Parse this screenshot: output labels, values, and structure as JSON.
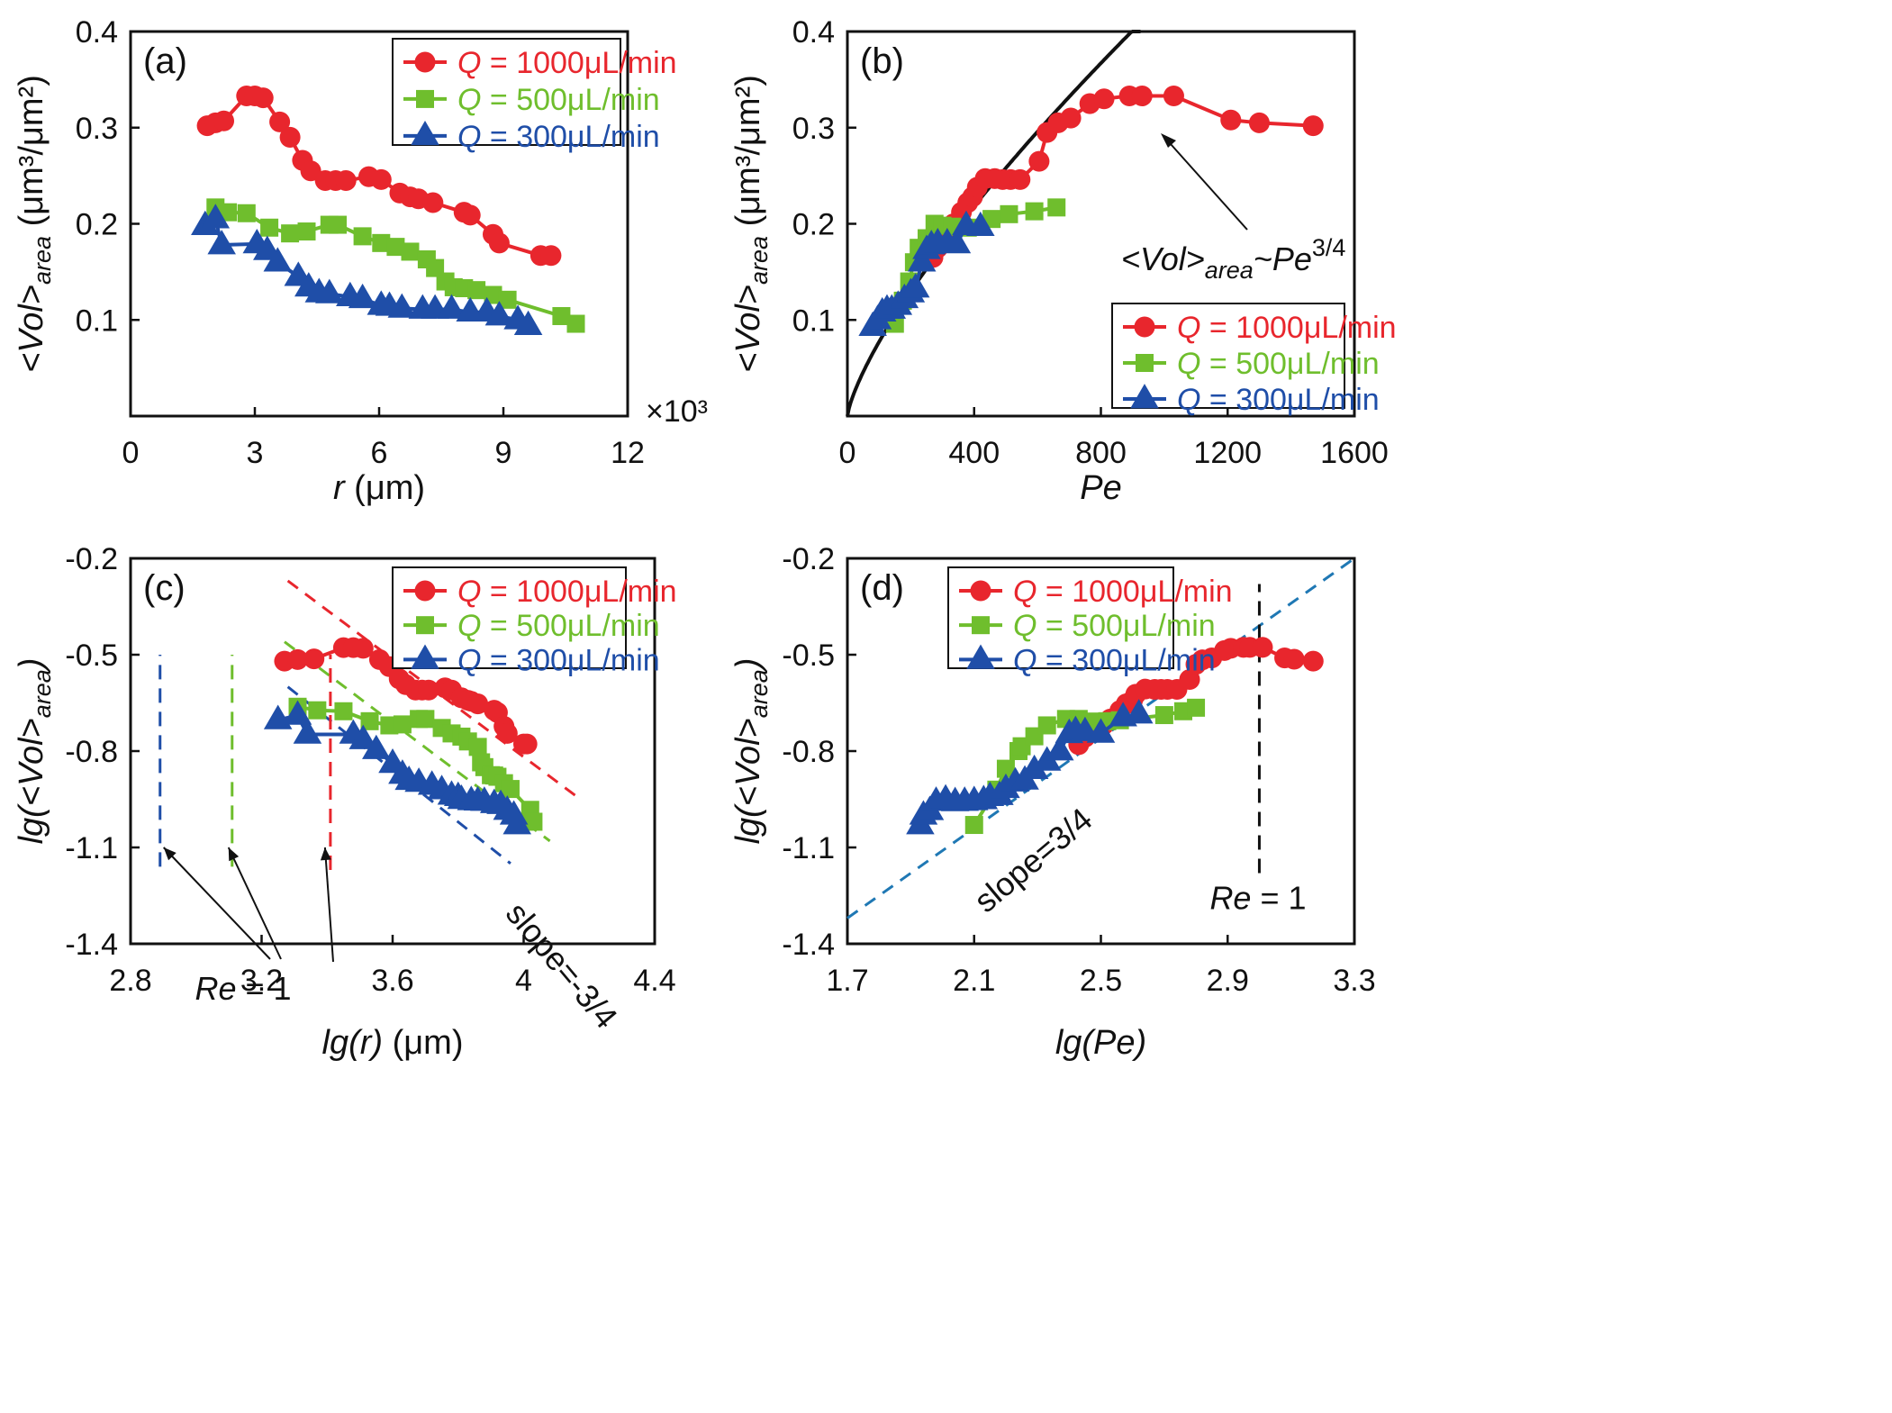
{
  "colors": {
    "red": "#e8262d",
    "green": "#6fbe2d",
    "blue": "#1f4ea8",
    "black": "#111111",
    "fitblue": "#1f78b4"
  },
  "legend_labels": {
    "q": "Q",
    "s1000": " = 1000μL/min",
    "s500": " = 500μL/min",
    "s300": " = 300μL/min"
  },
  "chart_data": [
    {
      "panel": "(a)",
      "type": "line",
      "xlabel_var": "r",
      "xlabel_unit": " (μm)",
      "ylabel_main": "<Vol>",
      "ylabel_sub": "area",
      "ylabel_unit": " (μm³/μm²)",
      "x_multiplier": "×10³",
      "xlim": [
        0,
        12
      ],
      "ylim": [
        0,
        0.4
      ],
      "xticks": [
        "0",
        "3",
        "6",
        "9",
        "12"
      ],
      "yticks": [
        "0.1",
        "0.2",
        "0.3",
        "0.4"
      ],
      "legend_position": "top-right",
      "series": [
        {
          "name": "Q = 1000μL/min",
          "color": "red",
          "marker": "circle",
          "x": [
            1.85,
            2.05,
            2.25,
            2.8,
            3.0,
            3.2,
            3.6,
            3.85,
            4.15,
            4.35,
            4.7,
            4.95,
            5.2,
            5.75,
            6.05,
            6.5,
            6.75,
            6.95,
            7.3,
            8.05,
            8.2,
            8.75,
            8.9,
            9.9,
            10.15
          ],
          "y": [
            0.302,
            0.305,
            0.307,
            0.333,
            0.333,
            0.331,
            0.306,
            0.29,
            0.266,
            0.255,
            0.245,
            0.245,
            0.245,
            0.249,
            0.246,
            0.232,
            0.228,
            0.226,
            0.222,
            0.212,
            0.209,
            0.189,
            0.18,
            0.167,
            0.167
          ]
        },
        {
          "name": "Q = 500μL/min",
          "color": "green",
          "marker": "square",
          "x": [
            2.05,
            2.35,
            2.8,
            3.35,
            3.85,
            4.25,
            4.8,
            5.0,
            5.6,
            6.05,
            6.4,
            6.75,
            7.15,
            7.35,
            7.6,
            7.8,
            8.05,
            8.35,
            8.75,
            9.1,
            10.4,
            10.75
          ],
          "y": [
            0.217,
            0.212,
            0.211,
            0.196,
            0.19,
            0.192,
            0.199,
            0.199,
            0.187,
            0.18,
            0.176,
            0.171,
            0.163,
            0.154,
            0.14,
            0.134,
            0.133,
            0.131,
            0.126,
            0.121,
            0.104,
            0.096
          ]
        },
        {
          "name": "Q = 300μL/min",
          "color": "blue",
          "marker": "triangle",
          "x": [
            1.8,
            2.05,
            2.2,
            3.05,
            3.3,
            3.55,
            4.05,
            4.3,
            4.55,
            4.8,
            5.3,
            5.6,
            6.05,
            6.25,
            6.55,
            7.05,
            7.35,
            7.75,
            8.2,
            8.6,
            8.9,
            9.35,
            9.6
          ],
          "y": [
            0.198,
            0.205,
            0.178,
            0.179,
            0.172,
            0.16,
            0.145,
            0.134,
            0.128,
            0.127,
            0.124,
            0.122,
            0.115,
            0.114,
            0.112,
            0.111,
            0.111,
            0.111,
            0.108,
            0.108,
            0.104,
            0.1,
            0.094
          ]
        }
      ]
    },
    {
      "panel": "(b)",
      "type": "line",
      "xlabel_var": "Pe",
      "ylabel_main": "<Vol>",
      "ylabel_sub": "area",
      "ylabel_unit": " (μm³/μm²)",
      "xlim": [
        0,
        1600
      ],
      "ylim": [
        0,
        0.4
      ],
      "xticks": [
        "0",
        "400",
        "800",
        "1200",
        "1600"
      ],
      "yticks": [
        "0.1",
        "0.2",
        "0.3",
        "0.4"
      ],
      "legend_position": "bottom-right",
      "fit": {
        "label_main": "<Vol>",
        "label_sub": "area",
        "label_rel": "~Pe",
        "label_exp": "3/4",
        "coef": 0.00244,
        "exponent": 0.75,
        "xmax": 925
      },
      "series": [
        {
          "name": "Q = 1000μL/min",
          "color": "red",
          "marker": "circle",
          "x": [
            270,
            285,
            305,
            320,
            335,
            360,
            380,
            395,
            410,
            435,
            465,
            490,
            515,
            545,
            605,
            630,
            665,
            705,
            765,
            810,
            890,
            930,
            1030,
            1210,
            1300,
            1470
          ],
          "y": [
            0.165,
            0.175,
            0.185,
            0.192,
            0.2,
            0.212,
            0.222,
            0.228,
            0.238,
            0.247,
            0.247,
            0.246,
            0.246,
            0.246,
            0.265,
            0.295,
            0.305,
            0.31,
            0.325,
            0.33,
            0.333,
            0.333,
            0.333,
            0.308,
            0.305,
            0.302
          ]
        },
        {
          "name": "Q = 500μL/min",
          "color": "green",
          "marker": "square",
          "x": [
            150,
            175,
            195,
            210,
            225,
            250,
            275,
            300,
            330,
            380,
            455,
            510,
            590,
            660
          ],
          "y": [
            0.096,
            0.12,
            0.14,
            0.16,
            0.175,
            0.185,
            0.2,
            0.198,
            0.197,
            0.196,
            0.205,
            0.21,
            0.213,
            0.217
          ]
        },
        {
          "name": "Q = 300μL/min",
          "color": "blue",
          "marker": "triangle",
          "x": [
            80,
            95,
            110,
            125,
            140,
            160,
            180,
            200,
            215,
            235,
            250,
            265,
            285,
            315,
            345,
            375,
            420
          ],
          "y": [
            0.093,
            0.1,
            0.108,
            0.111,
            0.111,
            0.115,
            0.122,
            0.128,
            0.133,
            0.16,
            0.173,
            0.178,
            0.18,
            0.18,
            0.179,
            0.198,
            0.197
          ]
        }
      ]
    },
    {
      "panel": "(c)",
      "type": "line",
      "xlabel_var": "lg(r)",
      "xlabel_unit": " (μm)",
      "ylabel_pre": "lg(<Vol>",
      "ylabel_sub": "area",
      "ylabel_post": ")",
      "xlim": [
        2.8,
        4.4
      ],
      "ylim": [
        -1.4,
        -0.2
      ],
      "xticks": [
        "2.8",
        "3.2",
        "3.6",
        "4",
        "4.4"
      ],
      "yticks": [
        "-1.4",
        "-1.1",
        "-0.8",
        "-0.5",
        "-0.2"
      ],
      "legend_position": "top-right",
      "vlines": [
        {
          "x": 2.89,
          "color": "blue",
          "y": [
            -1.16,
            -0.5
          ]
        },
        {
          "x": 3.11,
          "color": "green",
          "y": [
            -1.16,
            -0.5
          ]
        },
        {
          "x": 3.41,
          "color": "red",
          "y": [
            -1.17,
            -0.5
          ]
        }
      ],
      "guides": [
        {
          "color": "red",
          "x": [
            3.28,
            4.16
          ],
          "y": [
            -0.27,
            -0.94
          ]
        },
        {
          "color": "green",
          "x": [
            3.27,
            4.08
          ],
          "y": [
            -0.46,
            -1.08
          ]
        },
        {
          "color": "blue",
          "x": [
            3.28,
            3.96
          ],
          "y": [
            -0.6,
            -1.15
          ]
        }
      ],
      "slope_label": "slope=-3/4",
      "re_label_var": "Re",
      "re_label_rest": " = 1",
      "series": [
        {
          "name": "Q = 1000μL/min",
          "color": "red",
          "marker": "circle",
          "x": [
            3.27,
            3.31,
            3.36,
            3.45,
            3.48,
            3.51,
            3.56,
            3.59,
            3.62,
            3.64,
            3.67,
            3.69,
            3.71,
            3.76,
            3.78,
            3.81,
            3.83,
            3.84,
            3.86,
            3.91,
            3.92,
            3.94,
            3.95,
            4.0,
            4.01
          ],
          "y": [
            -0.52,
            -0.515,
            -0.513,
            -0.478,
            -0.478,
            -0.48,
            -0.515,
            -0.537,
            -0.575,
            -0.593,
            -0.61,
            -0.61,
            -0.61,
            -0.603,
            -0.61,
            -0.634,
            -0.642,
            -0.645,
            -0.653,
            -0.673,
            -0.68,
            -0.723,
            -0.745,
            -0.778,
            -0.778
          ]
        },
        {
          "name": "Q = 500μL/min",
          "color": "green",
          "marker": "square",
          "x": [
            3.31,
            3.37,
            3.45,
            3.53,
            3.59,
            3.63,
            3.68,
            3.7,
            3.75,
            3.78,
            3.81,
            3.83,
            3.86,
            3.87,
            3.88,
            3.9,
            3.91,
            3.92,
            3.94,
            3.96,
            4.02,
            4.03
          ],
          "y": [
            -0.662,
            -0.673,
            -0.676,
            -0.707,
            -0.72,
            -0.717,
            -0.7,
            -0.7,
            -0.728,
            -0.745,
            -0.755,
            -0.77,
            -0.787,
            -0.835,
            -0.85,
            -0.875,
            -0.876,
            -0.88,
            -0.9,
            -0.918,
            -0.983,
            -1.02
          ]
        },
        {
          "name": "Q = 300μL/min",
          "color": "blue",
          "marker": "triangle",
          "x": [
            3.25,
            3.31,
            3.34,
            3.48,
            3.51,
            3.55,
            3.6,
            3.63,
            3.65,
            3.68,
            3.72,
            3.75,
            3.78,
            3.8,
            3.81,
            3.84,
            3.86,
            3.88,
            3.91,
            3.93,
            3.95,
            3.97,
            3.98
          ],
          "y": [
            -0.703,
            -0.689,
            -0.748,
            -0.748,
            -0.765,
            -0.796,
            -0.839,
            -0.873,
            -0.892,
            -0.898,
            -0.907,
            -0.921,
            -0.938,
            -0.942,
            -0.951,
            -0.955,
            -0.956,
            -0.957,
            -0.964,
            -0.967,
            -0.985,
            -1.0,
            -1.03
          ]
        }
      ]
    },
    {
      "panel": "(d)",
      "type": "line",
      "xlabel_var": "lg(Pe)",
      "ylabel_pre": "lg(<Vol>",
      "ylabel_sub": "area",
      "ylabel_post": ")",
      "xlim": [
        1.7,
        3.3
      ],
      "ylim": [
        -1.4,
        -0.2
      ],
      "xticks": [
        "1.7",
        "2.1",
        "2.5",
        "2.9",
        "3.3"
      ],
      "yticks": [
        "-1.4",
        "-1.1",
        "-0.8",
        "-0.5",
        "-0.2"
      ],
      "legend_position": "top-left",
      "guides": [
        {
          "color": "fitblue",
          "x": [
            1.7,
            3.3
          ],
          "y": [
            -1.32,
            -0.2
          ]
        }
      ],
      "vlines": [
        {
          "x": 3.0,
          "color": "black",
          "y": [
            -1.18,
            -0.28
          ]
        }
      ],
      "slope_label": "slope=3/4",
      "re_label_var": "Re",
      "re_label_rest": " = 1",
      "series": [
        {
          "name": "Q = 1000μL/min",
          "color": "red",
          "marker": "circle",
          "x": [
            2.43,
            2.45,
            2.48,
            2.51,
            2.53,
            2.56,
            2.58,
            2.6,
            2.61,
            2.64,
            2.67,
            2.69,
            2.71,
            2.74,
            2.78,
            2.8,
            2.82,
            2.85,
            2.89,
            2.91,
            2.95,
            2.97,
            3.01,
            3.08,
            3.11,
            3.17
          ],
          "y": [
            -0.78,
            -0.757,
            -0.733,
            -0.717,
            -0.7,
            -0.674,
            -0.653,
            -0.642,
            -0.623,
            -0.607,
            -0.608,
            -0.608,
            -0.608,
            -0.608,
            -0.577,
            -0.53,
            -0.516,
            -0.51,
            -0.487,
            -0.48,
            -0.477,
            -0.477,
            -0.477,
            -0.51,
            -0.514,
            -0.52
          ]
        },
        {
          "name": "Q = 500μL/min",
          "color": "green",
          "marker": "square",
          "x": [
            2.1,
            2.17,
            2.2,
            2.24,
            2.25,
            2.29,
            2.33,
            2.39,
            2.43,
            2.47,
            2.52,
            2.56,
            2.7,
            2.76,
            2.8
          ],
          "y": [
            -1.03,
            -0.92,
            -0.855,
            -0.8,
            -0.785,
            -0.754,
            -0.72,
            -0.7,
            -0.7,
            -0.708,
            -0.707,
            -0.704,
            -0.688,
            -0.676,
            -0.665
          ]
        },
        {
          "name": "Q = 300μL/min",
          "color": "blue",
          "marker": "triangle",
          "x": [
            1.93,
            1.94,
            1.96,
            1.98,
            2.01,
            2.04,
            2.07,
            2.1,
            2.13,
            2.15,
            2.18,
            2.2,
            2.23,
            2.26,
            2.29,
            2.33,
            2.37,
            2.4,
            2.42,
            2.45,
            2.5,
            2.57,
            2.62
          ],
          "y": [
            -1.03,
            -1.0,
            -0.986,
            -0.957,
            -0.95,
            -0.958,
            -0.957,
            -0.955,
            -0.952,
            -0.942,
            -0.939,
            -0.917,
            -0.897,
            -0.891,
            -0.858,
            -0.832,
            -0.8,
            -0.746,
            -0.737,
            -0.74,
            -0.745,
            -0.694,
            -0.685
          ]
        }
      ]
    }
  ]
}
